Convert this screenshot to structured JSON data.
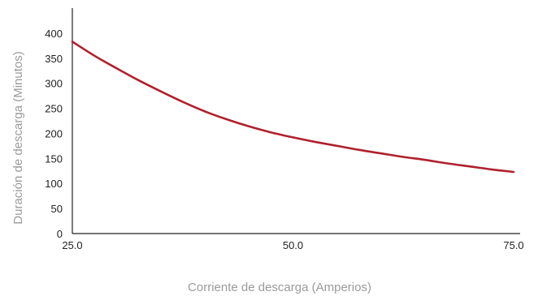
{
  "chart_data": {
    "type": "line",
    "title": "",
    "xlabel": "Corriente de descarga (Amperios)",
    "ylabel": "Duración de descarga (Minutos)",
    "xlim": [
      25.0,
      75.0
    ],
    "ylim": [
      0,
      450
    ],
    "x_ticks": [
      "25.0",
      "50.0",
      "75.0"
    ],
    "x_tick_values": [
      25,
      50,
      75
    ],
    "y_ticks": [
      "0",
      "50",
      "100",
      "150",
      "200",
      "250",
      "300",
      "350",
      "400"
    ],
    "y_tick_values": [
      0,
      50,
      100,
      150,
      200,
      250,
      300,
      350,
      400
    ],
    "grid": false,
    "legend": "none",
    "series": [
      {
        "color": "#b0202c",
        "x": [
          25,
          27.5,
          30,
          32.5,
          35,
          37.5,
          40,
          42.5,
          45,
          47.5,
          50,
          52.5,
          55,
          57.5,
          60,
          62.5,
          65,
          67.5,
          70,
          72.5,
          75
        ],
        "y": [
          383,
          355,
          330,
          306,
          284,
          263,
          244,
          228,
          214,
          202,
          192,
          183,
          175,
          167,
          160,
          153,
          147,
          140,
          134,
          128,
          123
        ]
      }
    ]
  }
}
